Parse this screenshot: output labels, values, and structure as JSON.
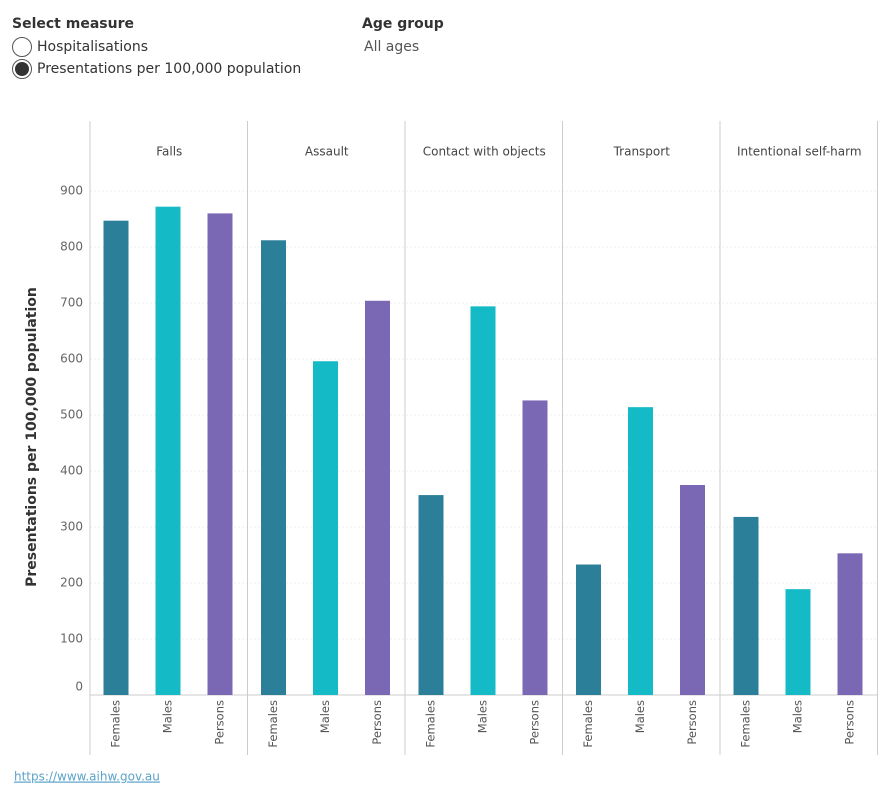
{
  "controls": {
    "measure": {
      "label": "Select measure",
      "options": [
        "Hospitalisations",
        "Presentations per 100,000 population"
      ],
      "selected": 1
    },
    "age_group": {
      "label": "Age group",
      "value": "All ages"
    }
  },
  "chart_data": {
    "type": "bar",
    "ylabel": "Presentations per 100,000 population",
    "panels": [
      "Falls",
      "Assault",
      "Contact with objects",
      "Transport",
      "Intentional self-harm"
    ],
    "series": [
      {
        "name": "Females",
        "color": "#2b7f99",
        "values": [
          847,
          812,
          357,
          233,
          318
        ]
      },
      {
        "name": "Males",
        "color": "#14bac6",
        "values": [
          872,
          596,
          694,
          514,
          189
        ]
      },
      {
        "name": "Persons",
        "color": "#7a68b5",
        "values": [
          860,
          704,
          526,
          375,
          253
        ]
      }
    ],
    "ylim": [
      0,
      950
    ],
    "yticks": [
      0,
      100,
      200,
      300,
      400,
      500,
      600,
      700,
      800,
      900
    ],
    "grid": true
  },
  "footer": {
    "link": "https://www.aihw.gov.au"
  }
}
